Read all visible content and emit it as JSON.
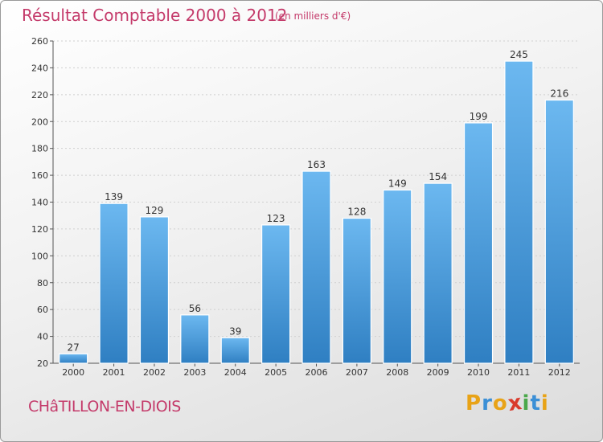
{
  "title": "Résultat Comptable 2000 à 2012",
  "subtitle": "(en milliers d'€)",
  "town": "CHâTILLON-EN-DIOIS",
  "logo": {
    "letters": [
      "P",
      "r",
      "o",
      "x",
      "i",
      "t",
      "i"
    ],
    "colors": [
      "#e8a317",
      "#3b8fd6",
      "#e8a317",
      "#d93a2b",
      "#4aa84a",
      "#3b8fd6",
      "#e8a317"
    ]
  },
  "colors": {
    "bar_light": "#6cb8f0",
    "bar_dark": "#2f7fc2",
    "title": "#c43a6a",
    "grid": "#d0d0d0"
  },
  "chart_data": {
    "type": "bar",
    "categories": [
      "2000",
      "2001",
      "2002",
      "2003",
      "2004",
      "2005",
      "2006",
      "2007",
      "2008",
      "2009",
      "2010",
      "2011",
      "2012"
    ],
    "values": [
      27,
      139,
      129,
      56,
      39,
      123,
      163,
      128,
      149,
      154,
      199,
      245,
      216
    ],
    "ylim": [
      20,
      260
    ],
    "yticks": [
      20,
      40,
      60,
      80,
      100,
      120,
      140,
      160,
      180,
      200,
      220,
      240,
      260
    ],
    "grid": "horizontal dotted",
    "data_labels": true
  }
}
